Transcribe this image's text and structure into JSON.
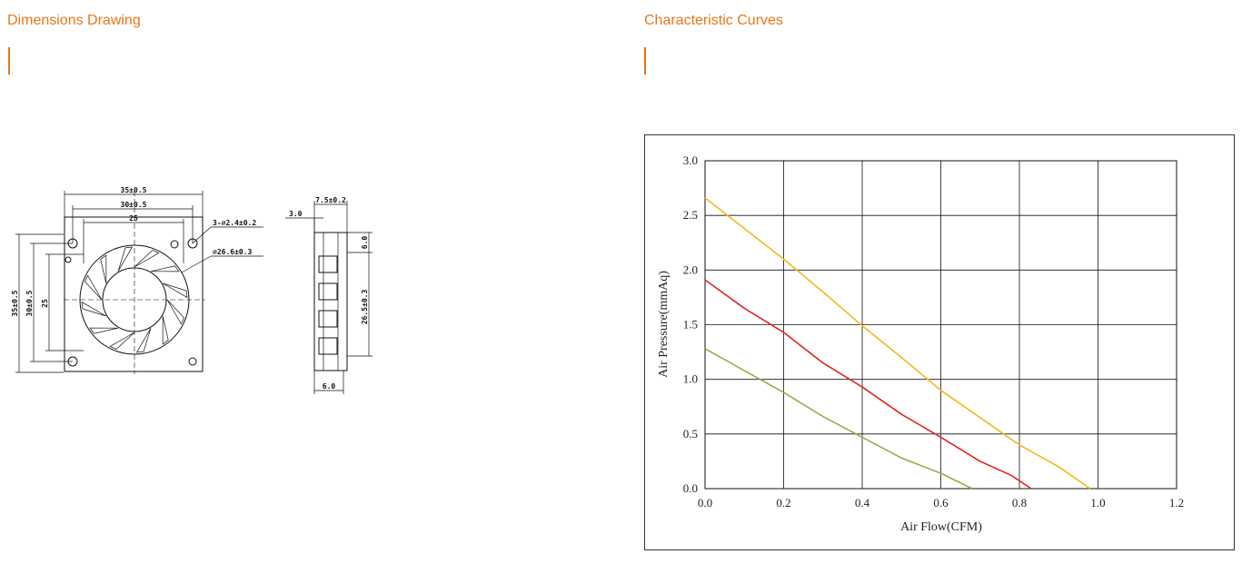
{
  "left_section": {
    "title": "Dimensions Drawing",
    "dims": {
      "outer_w": "35±0.5",
      "mount_w": "30±0.5",
      "inner_w": "25",
      "hole": "3-⌀2.4±0.2",
      "fan_dia": "⌀26.6±0.3",
      "outer_h": "35±0.5",
      "mount_h": "30±0.5",
      "inner_h": "25",
      "side_top": "7.5±0.2",
      "side_left": "3.0",
      "side_right_top": "6.0",
      "side_h": "26.5±0.3",
      "side_bottom": "6.0"
    }
  },
  "right_section": {
    "title": "Characteristic Curves"
  },
  "chart_data": {
    "type": "line",
    "title": "",
    "xlabel": "Air Flow(CFM)",
    "ylabel": "Air Pressure(mmAq)",
    "xlim": [
      0.0,
      1.2
    ],
    "ylim": [
      0.0,
      3.0
    ],
    "xticks": [
      "0.0",
      "0.2",
      "0.4",
      "0.6",
      "0.8",
      "1.0",
      "1.2"
    ],
    "yticks": [
      "0.0",
      "0.5",
      "1.0",
      "1.5",
      "2.0",
      "2.5",
      "3.0"
    ],
    "grid": true,
    "legend": "none",
    "series": [
      {
        "color": "#f2b81f",
        "x": [
          0.0,
          0.1,
          0.2,
          0.3,
          0.4,
          0.5,
          0.6,
          0.7,
          0.8,
          0.9,
          0.98
        ],
        "y": [
          2.66,
          2.38,
          2.1,
          1.8,
          1.49,
          1.2,
          0.9,
          0.65,
          0.4,
          0.2,
          0.0
        ]
      },
      {
        "color": "#e02424",
        "x": [
          0.0,
          0.1,
          0.2,
          0.3,
          0.4,
          0.5,
          0.6,
          0.7,
          0.78,
          0.83
        ],
        "y": [
          1.91,
          1.65,
          1.43,
          1.15,
          0.93,
          0.68,
          0.47,
          0.25,
          0.12,
          0.0
        ]
      },
      {
        "color": "#8db04f",
        "x": [
          0.0,
          0.1,
          0.2,
          0.3,
          0.4,
          0.5,
          0.6,
          0.68
        ],
        "y": [
          1.28,
          1.08,
          0.88,
          0.66,
          0.47,
          0.28,
          0.14,
          0.0
        ]
      }
    ]
  }
}
